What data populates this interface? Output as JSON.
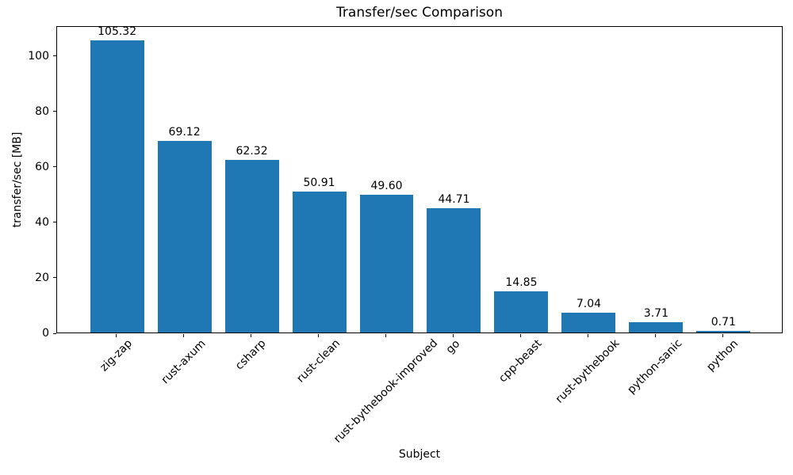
{
  "chart_data": {
    "type": "bar",
    "title": "Transfer/sec Comparison",
    "xlabel": "Subject",
    "ylabel": "transfer/sec [MB]",
    "categories": [
      "zig-zap",
      "rust-axum",
      "csharp",
      "rust-clean",
      "rust-bythebook-improved",
      "go",
      "cpp-beast",
      "rust-bythebook",
      "python-sanic",
      "python"
    ],
    "values": [
      105.32,
      69.12,
      62.32,
      50.91,
      49.6,
      44.71,
      14.85,
      7.04,
      3.71,
      0.71
    ],
    "bar_labels": [
      "105.32",
      "69.12",
      "62.32",
      "50.91",
      "49.60",
      "44.71",
      "14.85",
      "7.04",
      "3.71",
      "0.71"
    ],
    "bar_color": "#1f77b4",
    "ylim": [
      0,
      110.7
    ],
    "yticks": [
      0,
      20,
      40,
      60,
      80,
      100
    ],
    "xtick_rotation_deg": 45,
    "grid": false,
    "legend": "none"
  }
}
